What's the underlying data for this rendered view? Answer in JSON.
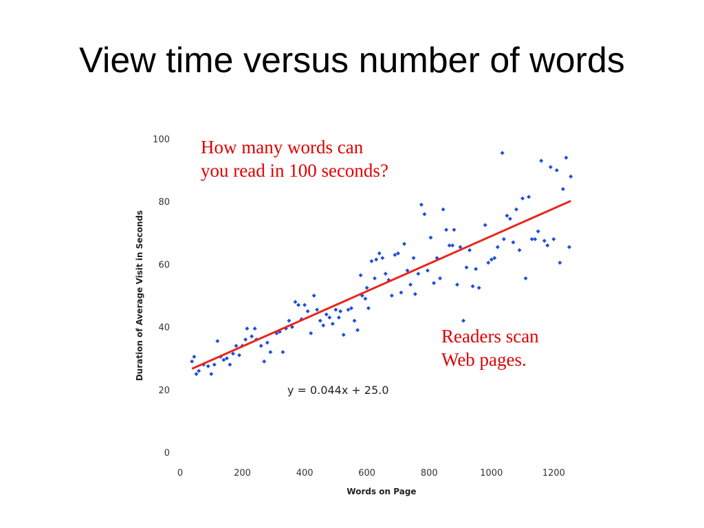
{
  "slide": {
    "title": "View time versus number of words",
    "annotation_top": [
      "How many words can",
      "you read in 100 seconds?"
    ],
    "annotation_right": [
      "Readers scan",
      "Web pages."
    ]
  },
  "chart_data": {
    "type": "scatter",
    "xlabel": "Words on Page",
    "ylabel": "Duration of Average Visit in Seconds",
    "xlim": [
      0,
      1250
    ],
    "ylim": [
      0,
      100
    ],
    "x_ticks": [
      0,
      200,
      400,
      600,
      800,
      1000,
      1200
    ],
    "y_ticks": [
      0,
      20,
      40,
      60,
      80,
      100
    ],
    "grid": false,
    "point_color": "#1f4fd8",
    "trendline": {
      "slope": 0.044,
      "intercept": 25.0,
      "label": "y = 0.044x + 25.0",
      "color": "#e8261c"
    },
    "points": [
      [
        38,
        29
      ],
      [
        45,
        30.5
      ],
      [
        52,
        25
      ],
      [
        60,
        26
      ],
      [
        75,
        28
      ],
      [
        90,
        27.5
      ],
      [
        100,
        25
      ],
      [
        110,
        28
      ],
      [
        120,
        35.5
      ],
      [
        130,
        30.5
      ],
      [
        140,
        29.5
      ],
      [
        150,
        30
      ],
      [
        160,
        28
      ],
      [
        170,
        31.5
      ],
      [
        180,
        34
      ],
      [
        190,
        31
      ],
      [
        200,
        34
      ],
      [
        210,
        36
      ],
      [
        215,
        39.5
      ],
      [
        230,
        37
      ],
      [
        240,
        39.5
      ],
      [
        245,
        36
      ],
      [
        260,
        34
      ],
      [
        270,
        29
      ],
      [
        280,
        35
      ],
      [
        290,
        32
      ],
      [
        310,
        38
      ],
      [
        320,
        38.5
      ],
      [
        330,
        32
      ],
      [
        340,
        39.5
      ],
      [
        350,
        42
      ],
      [
        360,
        40
      ],
      [
        370,
        48
      ],
      [
        380,
        47
      ],
      [
        390,
        42.5
      ],
      [
        400,
        47
      ],
      [
        410,
        45
      ],
      [
        420,
        38
      ],
      [
        430,
        50
      ],
      [
        440,
        45.5
      ],
      [
        450,
        42
      ],
      [
        460,
        40.5
      ],
      [
        470,
        44
      ],
      [
        480,
        43
      ],
      [
        490,
        41
      ],
      [
        500,
        45.5
      ],
      [
        510,
        43
      ],
      [
        515,
        45
      ],
      [
        525,
        37.5
      ],
      [
        540,
        45.5
      ],
      [
        550,
        46
      ],
      [
        560,
        42
      ],
      [
        570,
        39
      ],
      [
        580,
        56.5
      ],
      [
        585,
        50
      ],
      [
        595,
        49
      ],
      [
        600,
        52.5
      ],
      [
        605,
        46
      ],
      [
        615,
        61
      ],
      [
        625,
        55.5
      ],
      [
        630,
        61.5
      ],
      [
        640,
        63.5
      ],
      [
        650,
        62
      ],
      [
        660,
        57
      ],
      [
        670,
        55
      ],
      [
        680,
        50
      ],
      [
        690,
        63
      ],
      [
        700,
        63.5
      ],
      [
        710,
        51
      ],
      [
        720,
        66.5
      ],
      [
        730,
        58
      ],
      [
        740,
        53.5
      ],
      [
        750,
        62
      ],
      [
        755,
        50.5
      ],
      [
        765,
        57
      ],
      [
        775,
        79
      ],
      [
        785,
        76
      ],
      [
        795,
        58
      ],
      [
        805,
        68.5
      ],
      [
        815,
        54
      ],
      [
        825,
        62
      ],
      [
        835,
        55.5
      ],
      [
        845,
        77.5
      ],
      [
        855,
        71
      ],
      [
        865,
        66
      ],
      [
        875,
        66
      ],
      [
        880,
        71
      ],
      [
        890,
        53.5
      ],
      [
        900,
        65.5
      ],
      [
        910,
        42
      ],
      [
        920,
        59
      ],
      [
        930,
        64.5
      ],
      [
        940,
        53
      ],
      [
        950,
        58.5
      ],
      [
        960,
        52.5
      ],
      [
        980,
        72.5
      ],
      [
        990,
        60.5
      ],
      [
        1000,
        61.5
      ],
      [
        1010,
        62
      ],
      [
        1020,
        65.5
      ],
      [
        1035,
        95.5
      ],
      [
        1040,
        68
      ],
      [
        1050,
        75.5
      ],
      [
        1060,
        74.5
      ],
      [
        1070,
        67
      ],
      [
        1080,
        77.5
      ],
      [
        1090,
        64.5
      ],
      [
        1100,
        81
      ],
      [
        1110,
        55.5
      ],
      [
        1120,
        81.5
      ],
      [
        1130,
        68
      ],
      [
        1140,
        68
      ],
      [
        1150,
        70.5
      ],
      [
        1160,
        93
      ],
      [
        1170,
        67.5
      ],
      [
        1180,
        66
      ],
      [
        1190,
        91
      ],
      [
        1200,
        68
      ],
      [
        1210,
        90
      ],
      [
        1220,
        60.5
      ],
      [
        1230,
        84
      ],
      [
        1240,
        94
      ],
      [
        1250,
        65.5
      ],
      [
        1255,
        88
      ]
    ]
  }
}
